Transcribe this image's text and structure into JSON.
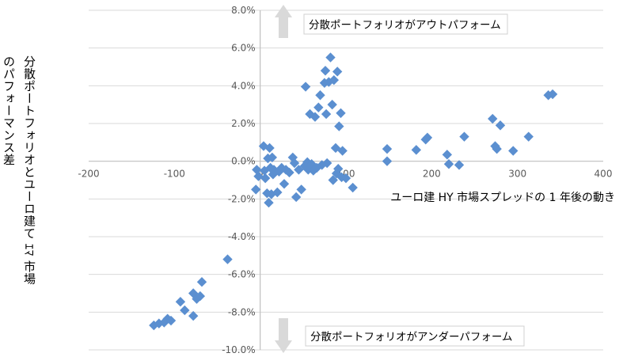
{
  "chart_data": {
    "type": "scatter",
    "xlabel": "ユーロ建 HY 市場スプレッドの 1 年後の動き",
    "ylabel_lines": [
      "分散ポートフォリオとユーロ建て ｴﾏ 市場",
      "のパフォーマンス差"
    ],
    "xlim": [
      -200,
      400
    ],
    "ylim": [
      -10,
      8
    ],
    "x_ticks": [
      "-200",
      "-100",
      "0",
      "100",
      "200",
      "300",
      "400"
    ],
    "y_ticks": [
      "8.0%",
      "6.0%",
      "4.0%",
      "2.0%",
      "0.0%",
      "-2.0%",
      "-4.0%",
      "-6.0%",
      "-8.0%",
      "-10.0%"
    ],
    "grid": "horizontal",
    "marker_color": "#5b8fd0",
    "annotations": {
      "top": "分散ポートフォリオがアウトパフォーム",
      "bottom": "分散ポートフォリオがアンダーパフォーム"
    },
    "points": [
      [
        -124,
        -8.7
      ],
      [
        -118,
        -8.6
      ],
      [
        -112,
        -8.55
      ],
      [
        -108,
        -8.35
      ],
      [
        -104,
        -8.45
      ],
      [
        -93,
        -7.45
      ],
      [
        -88,
        -7.9
      ],
      [
        -78,
        -8.2
      ],
      [
        -78,
        -7.0
      ],
      [
        -74,
        -7.3
      ],
      [
        -70,
        -7.15
      ],
      [
        -68,
        -6.4
      ],
      [
        -38,
        -5.2
      ],
      [
        -5,
        -1.5
      ],
      [
        -4,
        -0.45
      ],
      [
        -2,
        -0.8
      ],
      [
        4,
        0.8
      ],
      [
        5,
        -0.5
      ],
      [
        6,
        -0.9
      ],
      [
        8,
        -1.7
      ],
      [
        9,
        0.15
      ],
      [
        10,
        -2.2
      ],
      [
        11,
        0.7
      ],
      [
        12,
        -0.35
      ],
      [
        13,
        -1.75
      ],
      [
        14,
        0.2
      ],
      [
        15,
        -0.7
      ],
      [
        16,
        -0.45
      ],
      [
        20,
        -1.65
      ],
      [
        22,
        -0.55
      ],
      [
        25,
        -0.35
      ],
      [
        28,
        -1.2
      ],
      [
        30,
        -0.45
      ],
      [
        34,
        -0.6
      ],
      [
        38,
        0.2
      ],
      [
        40,
        -0.1
      ],
      [
        42,
        -1.9
      ],
      [
        45,
        -0.45
      ],
      [
        48,
        -1.5
      ],
      [
        52,
        -0.25
      ],
      [
        53,
        3.95
      ],
      [
        55,
        -0.05
      ],
      [
        56,
        -0.45
      ],
      [
        58,
        2.5
      ],
      [
        60,
        -0.15
      ],
      [
        62,
        -0.5
      ],
      [
        64,
        2.35
      ],
      [
        66,
        -0.35
      ],
      [
        68,
        2.85
      ],
      [
        70,
        3.5
      ],
      [
        72,
        -0.2
      ],
      [
        75,
        4.15
      ],
      [
        76,
        4.8
      ],
      [
        77,
        2.5
      ],
      [
        78,
        -0.1
      ],
      [
        80,
        4.2
      ],
      [
        82,
        5.5
      ],
      [
        84,
        3.0
      ],
      [
        85,
        -1.0
      ],
      [
        86,
        4.3
      ],
      [
        88,
        0.7
      ],
      [
        89,
        -0.65
      ],
      [
        90,
        4.75
      ],
      [
        91,
        -0.4
      ],
      [
        92,
        1.85
      ],
      [
        94,
        2.55
      ],
      [
        95,
        -0.85
      ],
      [
        96,
        0.55
      ],
      [
        100,
        -0.9
      ],
      [
        108,
        -1.4
      ],
      [
        148,
        0.65
      ],
      [
        148,
        0.0
      ],
      [
        182,
        0.6
      ],
      [
        193,
        1.15
      ],
      [
        195,
        1.25
      ],
      [
        218,
        0.35
      ],
      [
        220,
        -0.15
      ],
      [
        232,
        -0.2
      ],
      [
        238,
        1.3
      ],
      [
        271,
        2.25
      ],
      [
        274,
        0.8
      ],
      [
        276,
        0.65
      ],
      [
        280,
        1.9
      ],
      [
        295,
        0.55
      ],
      [
        313,
        1.3
      ],
      [
        336,
        3.5
      ],
      [
        341,
        3.55
      ]
    ]
  }
}
